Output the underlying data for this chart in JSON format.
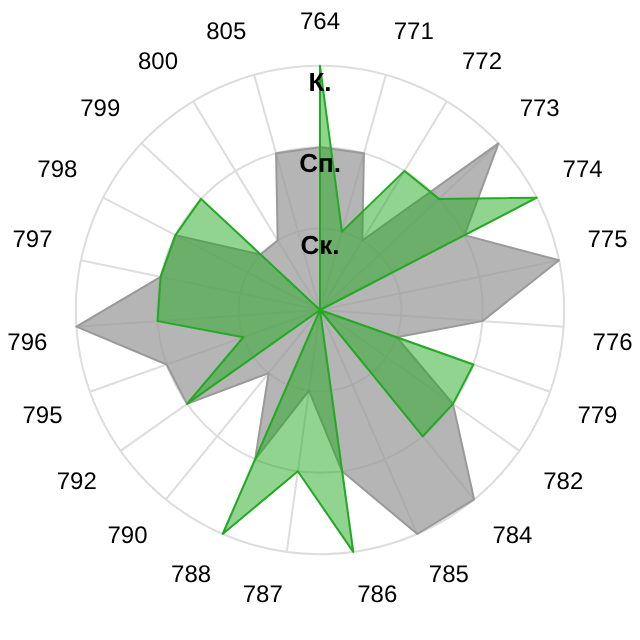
{
  "chart_data": {
    "type": "radar",
    "categories": [
      "764",
      "771",
      "772",
      "773",
      "774",
      "775",
      "776",
      "779",
      "782",
      "784",
      "785",
      "786",
      "787",
      "788",
      "790",
      "792",
      "795",
      "796",
      "797",
      "798",
      "799",
      "800",
      "805"
    ],
    "ylim": [
      0,
      3
    ],
    "yticks": [
      {
        "value": 1,
        "label": "Ск."
      },
      {
        "value": 2,
        "label": "Сп."
      },
      {
        "value": 3,
        "label": "К."
      }
    ],
    "grid": true,
    "legend": false,
    "marker": "none",
    "series": [
      {
        "color": "#999999",
        "values": [
          2,
          2,
          1,
          3,
          2,
          3,
          2,
          1,
          2,
          3,
          3,
          2,
          1,
          2,
          1,
          2,
          2,
          3,
          2,
          2,
          1,
          1,
          2
        ]
      },
      {
        "color": "#22aa22",
        "values": [
          3,
          1,
          2,
          2,
          3,
          0,
          0,
          2,
          2,
          2,
          0,
          3,
          2,
          3,
          0,
          2,
          1,
          2,
          2,
          2,
          2,
          0,
          0
        ]
      }
    ]
  }
}
